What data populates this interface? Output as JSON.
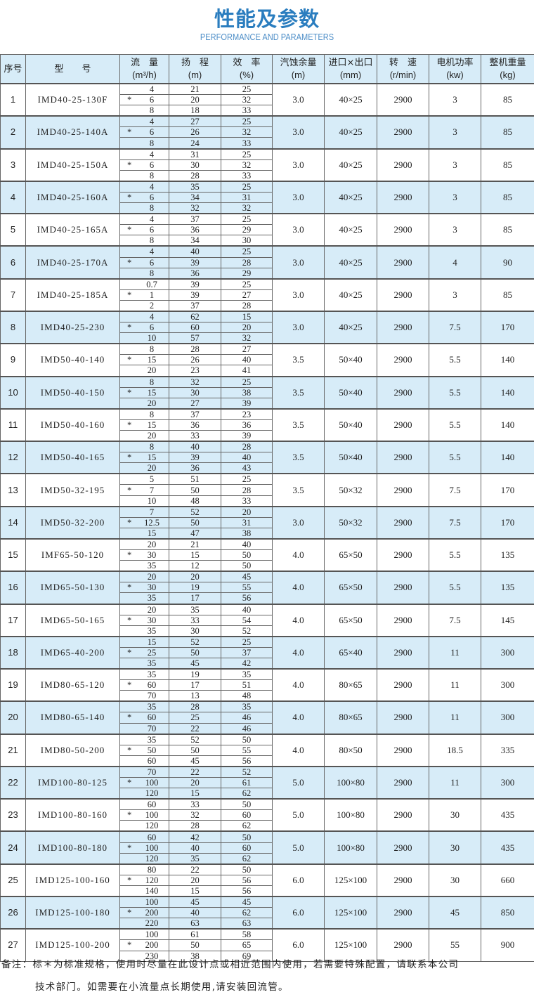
{
  "title": "性能及参数",
  "subtitle": "PERFORMANCE AND PARAMETERS",
  "colors": {
    "title": "#2a7dbf",
    "row_highlight": "#d7ecf8",
    "border": "#666666"
  },
  "header": {
    "no": "序号",
    "model": "型　　号",
    "flow": "流　量",
    "flow_unit": "(m³/h)",
    "head": "扬　程",
    "head_unit": "(m)",
    "eff": "效　率",
    "eff_unit": "(%)",
    "npsh": "汽蚀余量",
    "npsh_unit": "(m)",
    "port": "进口×出口",
    "port_unit": "(mm)",
    "speed": "转　速",
    "speed_unit": "(r/min)",
    "power": "电机功率",
    "power_unit": "(kw)",
    "weight": "整机重量",
    "weight_unit": "(kg)"
  },
  "star": "*",
  "rows": [
    {
      "no": "1",
      "model": "IMD40-25-130F",
      "flow": [
        "4",
        "6",
        "8"
      ],
      "head": [
        "21",
        "20",
        "18"
      ],
      "eff": [
        "25",
        "32",
        "33"
      ],
      "npsh": "3.0",
      "port": "40×25",
      "speed": "2900",
      "power": "3",
      "weight": "85"
    },
    {
      "no": "2",
      "model": "IMD40-25-140A",
      "flow": [
        "4",
        "6",
        "8"
      ],
      "head": [
        "27",
        "26",
        "24"
      ],
      "eff": [
        "25",
        "32",
        "33"
      ],
      "npsh": "3.0",
      "port": "40×25",
      "speed": "2900",
      "power": "3",
      "weight": "85"
    },
    {
      "no": "3",
      "model": "IMD40-25-150A",
      "flow": [
        "4",
        "6",
        "8"
      ],
      "head": [
        "31",
        "30",
        "28"
      ],
      "eff": [
        "25",
        "32",
        "33"
      ],
      "npsh": "3.0",
      "port": "40×25",
      "speed": "2900",
      "power": "3",
      "weight": "85"
    },
    {
      "no": "4",
      "model": "IMD40-25-160A",
      "flow": [
        "4",
        "6",
        "8"
      ],
      "head": [
        "35",
        "34",
        "32"
      ],
      "eff": [
        "25",
        "31",
        "32"
      ],
      "npsh": "3.0",
      "port": "40×25",
      "speed": "2900",
      "power": "3",
      "weight": "85"
    },
    {
      "no": "5",
      "model": "IMD40-25-165A",
      "flow": [
        "4",
        "6",
        "8"
      ],
      "head": [
        "37",
        "36",
        "34"
      ],
      "eff": [
        "25",
        "29",
        "30"
      ],
      "npsh": "3.0",
      "port": "40×25",
      "speed": "2900",
      "power": "3",
      "weight": "85"
    },
    {
      "no": "6",
      "model": "IMD40-25-170A",
      "flow": [
        "4",
        "6",
        "8"
      ],
      "head": [
        "40",
        "39",
        "36"
      ],
      "eff": [
        "25",
        "28",
        "29"
      ],
      "npsh": "3.0",
      "port": "40×25",
      "speed": "2900",
      "power": "4",
      "weight": "90"
    },
    {
      "no": "7",
      "model": "IMD40-25-185A",
      "flow": [
        "0.7",
        "1",
        "2"
      ],
      "head": [
        "39",
        "39",
        "37"
      ],
      "eff": [
        "25",
        "27",
        "28"
      ],
      "npsh": "3.0",
      "port": "40×25",
      "speed": "2900",
      "power": "3",
      "weight": "85"
    },
    {
      "no": "8",
      "model": "IMD40-25-230",
      "flow": [
        "4",
        "6",
        "10"
      ],
      "head": [
        "62",
        "60",
        "57"
      ],
      "eff": [
        "15",
        "20",
        "32"
      ],
      "npsh": "3.0",
      "port": "40×25",
      "speed": "2900",
      "power": "7.5",
      "weight": "170"
    },
    {
      "no": "9",
      "model": "IMD50-40-140",
      "flow": [
        "8",
        "15",
        "20"
      ],
      "head": [
        "28",
        "26",
        "23"
      ],
      "eff": [
        "27",
        "40",
        "41"
      ],
      "npsh": "3.5",
      "port": "50×40",
      "speed": "2900",
      "power": "5.5",
      "weight": "140"
    },
    {
      "no": "10",
      "model": "IMD50-40-150",
      "flow": [
        "8",
        "15",
        "20"
      ],
      "head": [
        "32",
        "30",
        "27"
      ],
      "eff": [
        "25",
        "38",
        "39"
      ],
      "npsh": "3.5",
      "port": "50×40",
      "speed": "2900",
      "power": "5.5",
      "weight": "140"
    },
    {
      "no": "11",
      "model": "IMD50-40-160",
      "flow": [
        "8",
        "15",
        "20"
      ],
      "head": [
        "37",
        "36",
        "33"
      ],
      "eff": [
        "23",
        "36",
        "39"
      ],
      "npsh": "3.5",
      "port": "50×40",
      "speed": "2900",
      "power": "5.5",
      "weight": "140"
    },
    {
      "no": "12",
      "model": "IMD50-40-165",
      "flow": [
        "8",
        "15",
        "20"
      ],
      "head": [
        "40",
        "39",
        "36"
      ],
      "eff": [
        "28",
        "40",
        "43"
      ],
      "npsh": "3.5",
      "port": "50×40",
      "speed": "2900",
      "power": "5.5",
      "weight": "140"
    },
    {
      "no": "13",
      "model": "IMD50-32-195",
      "flow": [
        "5",
        "7",
        "10"
      ],
      "head": [
        "51",
        "50",
        "48"
      ],
      "eff": [
        "25",
        "28",
        "33"
      ],
      "npsh": "3.5",
      "port": "50×32",
      "speed": "2900",
      "power": "7.5",
      "weight": "170"
    },
    {
      "no": "14",
      "model": "IMD50-32-200",
      "flow": [
        "7",
        "12.5",
        "15"
      ],
      "head": [
        "52",
        "50",
        "47"
      ],
      "eff": [
        "20",
        "31",
        "38"
      ],
      "npsh": "3.0",
      "port": "50×32",
      "speed": "2900",
      "power": "7.5",
      "weight": "170"
    },
    {
      "no": "15",
      "model": "IMF65-50-120",
      "flow": [
        "20",
        "30",
        "35"
      ],
      "head": [
        "21",
        "15",
        "12"
      ],
      "eff": [
        "40",
        "50",
        "50"
      ],
      "npsh": "4.0",
      "port": "65×50",
      "speed": "2900",
      "power": "5.5",
      "weight": "135"
    },
    {
      "no": "16",
      "model": "IMD65-50-130",
      "flow": [
        "20",
        "30",
        "35"
      ],
      "head": [
        "20",
        "19",
        "17"
      ],
      "eff": [
        "45",
        "55",
        "56"
      ],
      "npsh": "4.0",
      "port": "65×50",
      "speed": "2900",
      "power": "5.5",
      "weight": "135"
    },
    {
      "no": "17",
      "model": "IMD65-50-165",
      "flow": [
        "20",
        "30",
        "35"
      ],
      "head": [
        "35",
        "33",
        "30"
      ],
      "eff": [
        "40",
        "54",
        "52"
      ],
      "npsh": "4.0",
      "port": "65×50",
      "speed": "2900",
      "power": "7.5",
      "weight": "145"
    },
    {
      "no": "18",
      "model": "IMD65-40-200",
      "flow": [
        "15",
        "25",
        "35"
      ],
      "head": [
        "52",
        "50",
        "45"
      ],
      "eff": [
        "25",
        "37",
        "42"
      ],
      "npsh": "4.0",
      "port": "65×40",
      "speed": "2900",
      "power": "11",
      "weight": "300"
    },
    {
      "no": "19",
      "model": "IMD80-65-120",
      "flow": [
        "35",
        "60",
        "70"
      ],
      "head": [
        "19",
        "17",
        "13"
      ],
      "eff": [
        "35",
        "51",
        "48"
      ],
      "npsh": "4.0",
      "port": "80×65",
      "speed": "2900",
      "power": "11",
      "weight": "300"
    },
    {
      "no": "20",
      "model": "IMD80-65-140",
      "flow": [
        "35",
        "60",
        "70"
      ],
      "head": [
        "28",
        "25",
        "22"
      ],
      "eff": [
        "35",
        "46",
        "46"
      ],
      "npsh": "4.0",
      "port": "80×65",
      "speed": "2900",
      "power": "11",
      "weight": "300"
    },
    {
      "no": "21",
      "model": "IMD80-50-200",
      "flow": [
        "35",
        "50",
        "60"
      ],
      "head": [
        "52",
        "50",
        "45"
      ],
      "eff": [
        "50",
        "55",
        "56"
      ],
      "npsh": "4.0",
      "port": "80×50",
      "speed": "2900",
      "power": "18.5",
      "weight": "335"
    },
    {
      "no": "22",
      "model": "IMD100-80-125",
      "flow": [
        "70",
        "100",
        "120"
      ],
      "head": [
        "22",
        "20",
        "15"
      ],
      "eff": [
        "52",
        "61",
        "62"
      ],
      "npsh": "5.0",
      "port": "100×80",
      "speed": "2900",
      "power": "11",
      "weight": "300"
    },
    {
      "no": "23",
      "model": "IMD100-80-160",
      "flow": [
        "60",
        "100",
        "120"
      ],
      "head": [
        "33",
        "32",
        "28"
      ],
      "eff": [
        "50",
        "60",
        "62"
      ],
      "npsh": "5.0",
      "port": "100×80",
      "speed": "2900",
      "power": "30",
      "weight": "435"
    },
    {
      "no": "24",
      "model": "IMD100-80-180",
      "flow": [
        "60",
        "100",
        "120"
      ],
      "head": [
        "42",
        "40",
        "35"
      ],
      "eff": [
        "50",
        "60",
        "62"
      ],
      "npsh": "5.0",
      "port": "100×80",
      "speed": "2900",
      "power": "30",
      "weight": "435"
    },
    {
      "no": "25",
      "model": "IMD125-100-160",
      "flow": [
        "80",
        "120",
        "140"
      ],
      "head": [
        "22",
        "20",
        "15"
      ],
      "eff": [
        "50",
        "56",
        "56"
      ],
      "npsh": "6.0",
      "port": "125×100",
      "speed": "2900",
      "power": "30",
      "weight": "660"
    },
    {
      "no": "26",
      "model": "IMD125-100-180",
      "flow": [
        "100",
        "200",
        "220"
      ],
      "head": [
        "45",
        "40",
        "63"
      ],
      "eff": [
        "45",
        "62",
        "63"
      ],
      "npsh": "6.0",
      "port": "125×100",
      "speed": "2900",
      "power": "45",
      "weight": "850"
    },
    {
      "no": "27",
      "model": "IMD125-100-200",
      "flow": [
        "100",
        "200",
        "230"
      ],
      "head": [
        "61",
        "50",
        "38"
      ],
      "eff": [
        "58",
        "65",
        "69"
      ],
      "npsh": "6.0",
      "port": "125×100",
      "speed": "2900",
      "power": "55",
      "weight": "900"
    }
  ],
  "note": {
    "line1": "备注：标＊为标准规格，使用时尽量在此设计点或相近范围内使用，若需要特殊配置，请联系本公司",
    "line2": "技术部门。如需要在小流量点长期使用,请安装回流管。"
  }
}
